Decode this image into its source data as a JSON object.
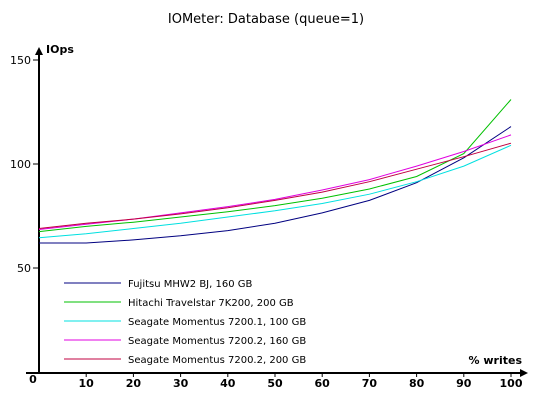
{
  "chart_data": {
    "type": "line",
    "title": "IOMeter: Database (queue=1)",
    "xlabel": "% writes",
    "ylabel": "IOps",
    "xlim": [
      0,
      100
    ],
    "ylim": [
      0,
      150
    ],
    "x_ticks": [
      0,
      10,
      20,
      30,
      40,
      50,
      60,
      70,
      80,
      90,
      100
    ],
    "y_ticks": [
      50,
      100,
      150
    ],
    "x": [
      0,
      10,
      20,
      30,
      40,
      50,
      60,
      70,
      80,
      90,
      100
    ],
    "grid": false,
    "legend_position": "bottom-left",
    "series": [
      {
        "name": "Fujitsu MHW2 BJ, 160 GB",
        "color": "#000080",
        "values": [
          62,
          62,
          63.5,
          65.5,
          68,
          71.5,
          76.5,
          82.5,
          91,
          103,
          118
        ]
      },
      {
        "name": "Hitachi Travelstar 7K200, 200 GB",
        "color": "#00c000",
        "values": [
          67.5,
          70,
          72,
          74.5,
          77,
          80,
          83.5,
          88,
          94,
          105,
          131
        ]
      },
      {
        "name": "Seagate Momentus 7200.1, 100 GB",
        "color": "#00e0e0",
        "values": [
          64.5,
          66.5,
          69,
          71.5,
          74.5,
          77.5,
          81,
          85.5,
          91.5,
          99,
          109
        ]
      },
      {
        "name": "Seagate Momentus 7200.2, 160 GB",
        "color": "#e000e0",
        "values": [
          68.5,
          71,
          73.5,
          76.5,
          79.5,
          83,
          87.5,
          92.5,
          99,
          106,
          114
        ]
      },
      {
        "name": "Seagate Momentus 7200.2, 200 GB",
        "color": "#c00040",
        "values": [
          69,
          71.5,
          73.5,
          76,
          79,
          82.5,
          86.5,
          91.5,
          97.5,
          103.5,
          110
        ]
      }
    ]
  }
}
